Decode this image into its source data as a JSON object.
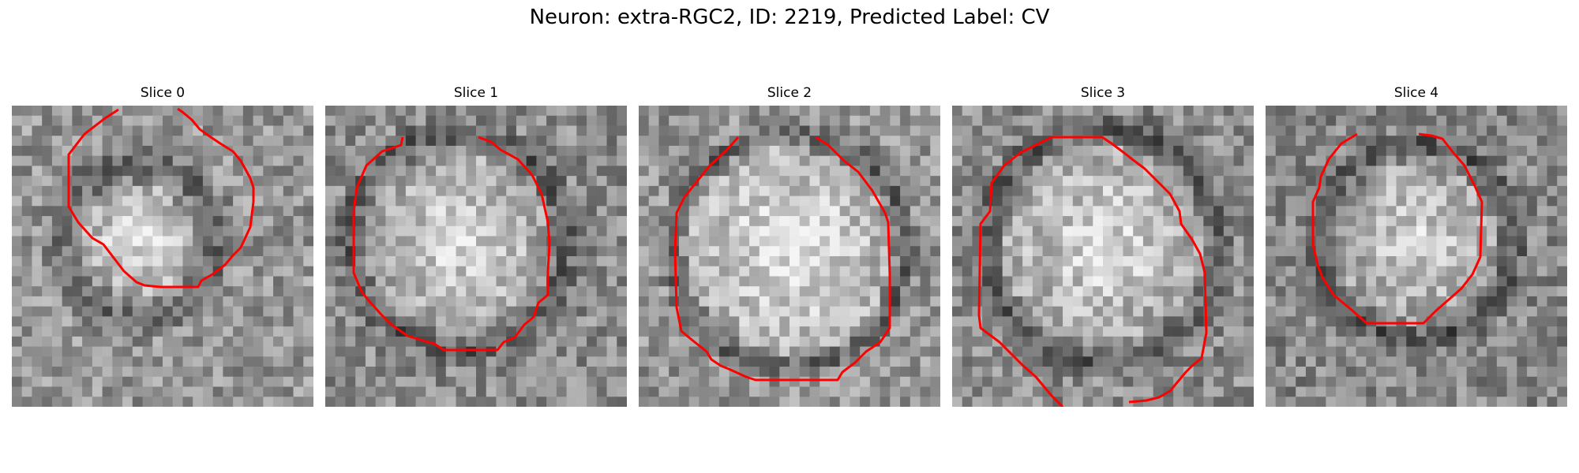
{
  "figure": {
    "title": "Neuron: extra-RGC2, ID: 2219, Predicted Label: CV"
  },
  "slices": [
    {
      "title": "Slice 0"
    },
    {
      "title": "Slice 1"
    },
    {
      "title": "Slice 2"
    },
    {
      "title": "Slice 3"
    },
    {
      "title": "Slice 4"
    }
  ],
  "colors": {
    "contour": "#ff0000"
  }
}
